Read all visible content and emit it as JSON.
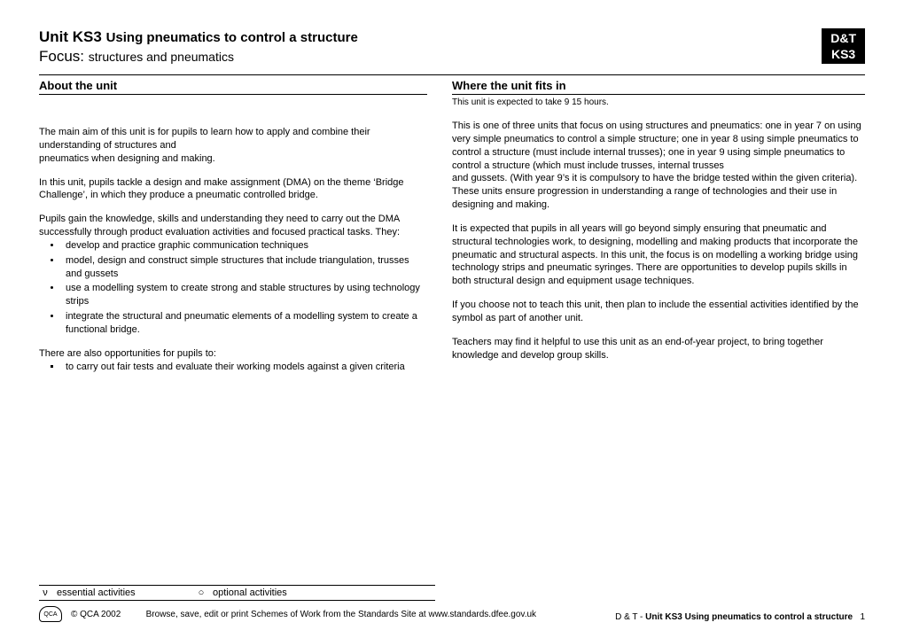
{
  "header": {
    "unit_prefix": "Unit KS3",
    "unit_title": "Using pneumatics to control a structure",
    "focus_prefix": "Focus:",
    "focus_text": "structures and pneumatics",
    "badge_line1": "D&T",
    "badge_line2": "KS3"
  },
  "left": {
    "heading": "About the unit",
    "para1a": "The main aim of this unit is for pupils to learn how to apply and combine their understanding of structures and",
    "para1b": "pneumatics when designing and making.",
    "para2": "In this unit, pupils tackle a design and make assignment (DMA) on the theme ‘Bridge Challenge’, in which they produce a pneumatic controlled bridge.",
    "para3": "Pupils gain the knowledge, skills and understanding they need to carry out the DMA successfully through product evaluation activities and focused practical tasks.  They:",
    "bullets": [
      "develop and practice graphic communication techniques",
      "model, design and construct simple structures that include triangulation, trusses and gussets",
      "use a modelling system to create strong and stable structures by using technology strips",
      "integrate the structural and pneumatic elements of a modelling system to create a functional bridge."
    ],
    "para4": "There are also opportunities for pupils to:",
    "square_bullets": [
      "to carry out fair tests and evaluate their working models against a given criteria"
    ]
  },
  "right": {
    "heading": "Where the unit fits in",
    "note": "This unit is expected to take 9 15 hours.",
    "para1": "This is one of three units that focus on using structures and pneumatics: one in year 7 on using very simple pneumatics to control a simple structure; one in year 8 using simple pneumatics to control a structure  (must include internal trusses); one in year 9 using simple pneumatics to control a structure (which must include trusses, internal trusses",
    "para1b": "and gussets. (With year 9’s it is compulsory to have the bridge tested within the given criteria).    These units ensure progression in understanding a range of technologies and their use in designing and making.",
    "para2": "It is expected that pupils in all years will go beyond simply ensuring that pneumatic and structural technologies work, to designing, modelling and making products that incorporate the pneumatic and structural  aspects.  In this unit, the focus is on modelling a working bridge using technology strips and pneumatic syringes.  There are opportunities to develop pupils skills in both structural design and equipment usage techniques.",
    "para3": "If you choose not to teach this unit, then plan to include the essential activities identified by the  symbol      as part of another unit.",
    "para4": "Teachers may find it helpful to use this unit as an end-of-year project, to bring together knowledge and develop group skills."
  },
  "legend": {
    "sym1": "ν",
    "label1": "essential activities",
    "sym2": "○",
    "label2": "optional activities"
  },
  "footer": {
    "logo_text": "QCA",
    "copyright": "© QCA 2002",
    "browse": "Browse, save, edit or print Schemes of Work from the Standards Site at www.standards.dfee.gov.uk",
    "right_prefix": "D & T - ",
    "right_bold": "Unit KS3 Using pneumatics to control a structure",
    "page_num": "1"
  }
}
